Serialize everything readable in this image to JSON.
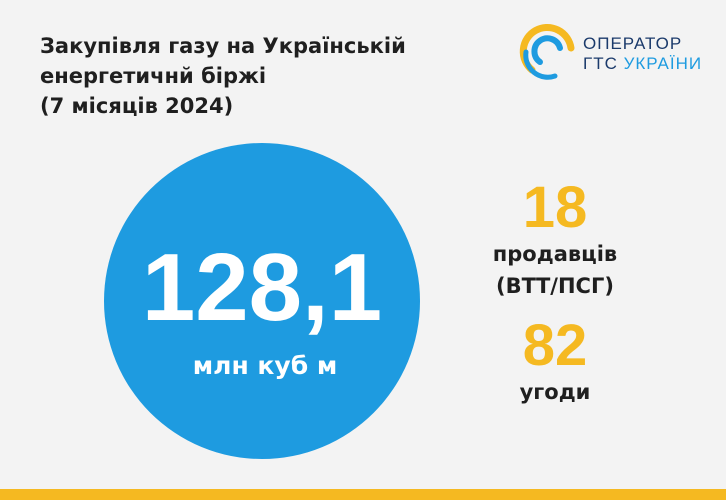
{
  "header": {
    "title": [
      "Закупівля газу на Українській",
      "енергетичнй біржі",
      "(7 місяців 2024)"
    ]
  },
  "logo": {
    "line1": "ОПЕРАТОР",
    "line2a": "ГТС",
    "line2b": "УКРАЇНИ"
  },
  "main": {
    "value": "128,1",
    "unit": "млн куб м"
  },
  "stats": [
    {
      "value": "18",
      "label": [
        "продавців",
        "(ВТТ/ПСГ)"
      ]
    },
    {
      "value": "82",
      "label": [
        "угоди"
      ]
    }
  ]
}
